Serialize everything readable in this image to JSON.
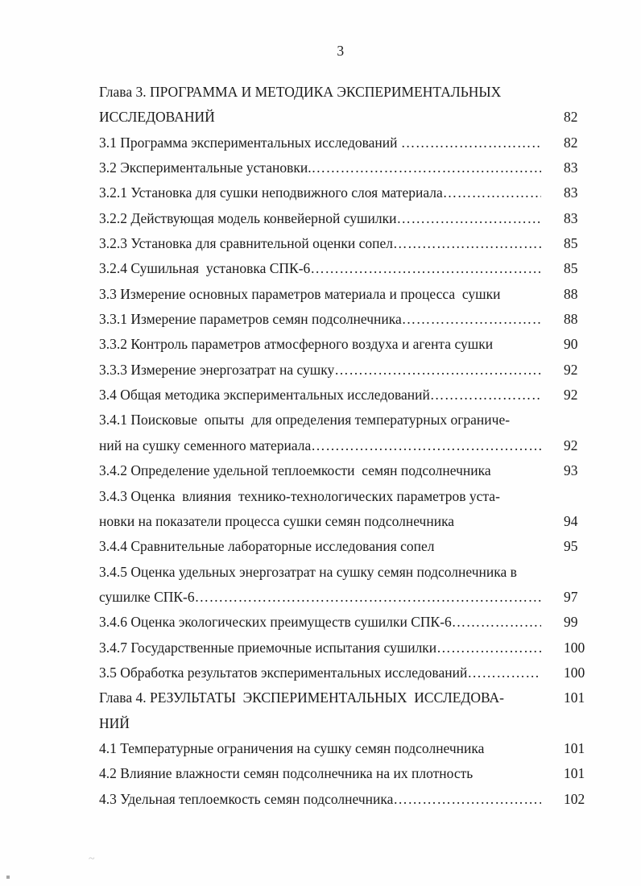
{
  "document": {
    "page_number": "3",
    "leader_dots": "………………………………………………………………………………………………",
    "entries": [
      {
        "text": "Глава 3. ПРОГРАММА И МЕТОДИКА ЭКСПЕРИМЕНТАЛЬНЫХ",
        "leader": false,
        "page": ""
      },
      {
        "text": "ИССЛЕДОВАНИЙ",
        "leader": false,
        "page": "82"
      },
      {
        "text": "3.1 Программа экспериментальных исследований ",
        "leader": true,
        "page": "82"
      },
      {
        "text": "3.2 Экспериментальные установки.",
        "leader": true,
        "page": "83"
      },
      {
        "text": "3.2.1 Установка для сушки неподвижного слоя материала",
        "leader": true,
        "page": "83"
      },
      {
        "text": "3.2.2 Действующая модель конвейерной сушилки",
        "leader": true,
        "page": "83"
      },
      {
        "text": "3.2.3 Установка для сравнительной оценки сопел",
        "leader": true,
        "page": "85"
      },
      {
        "text": "3.2.4 Сушильная  установка СПК-6",
        "leader": true,
        "page": "85"
      },
      {
        "text": "3.3 Измерение основных параметров материала и процесса  сушки",
        "leader": false,
        "page": "88"
      },
      {
        "text": "3.3.1 Измерение параметров семян подсолнечника",
        "leader": true,
        "page": "88"
      },
      {
        "text": "3.3.2 Контроль параметров атмосферного воздуха и агента сушки",
        "leader": false,
        "page": "90"
      },
      {
        "text": "3.3.3 Измерение энергозатрат на сушку",
        "leader": true,
        "page": "92"
      },
      {
        "text": "3.4 Общая методика экспериментальных исследований",
        "leader": true,
        "page": "92"
      },
      {
        "text": "3.4.1 Поисковые  опыты  для определения температурных ограниче-",
        "leader": false,
        "page": ""
      },
      {
        "text": "ний на сушку семенного материала",
        "leader": true,
        "page": "92"
      },
      {
        "text": "3.4.2 Определение удельной теплоемкости  семян подсолнечника",
        "leader": false,
        "page": "93"
      },
      {
        "text": "3.4.3 Оценка  влияния  технико-технологических параметров уста-",
        "leader": false,
        "page": ""
      },
      {
        "text": "новки на показатели процесса сушки семян подсолнечника",
        "leader": false,
        "page": "94"
      },
      {
        "text": "3.4.4 Сравнительные лабораторные исследования сопел",
        "leader": false,
        "page": "95"
      },
      {
        "text": "3.4.5 Оценка удельных энергозатрат на сушку семян подсолнечника в",
        "leader": false,
        "page": ""
      },
      {
        "text": "сушилке СПК-6",
        "leader": true,
        "page": "97"
      },
      {
        "text": "3.4.6 Оценка экологических преимуществ сушилки СПК-6",
        "leader": true,
        "page": "99"
      },
      {
        "text": "3.4.7 Государственные приемочные испытания сушилки",
        "leader": true,
        "page": "100"
      },
      {
        "text": "3.5 Обработка результатов экспериментальных исследований",
        "leader": true,
        "page": "100"
      },
      {
        "text": "Глава 4. РЕЗУЛЬТАТЫ  ЭКСПЕРИМЕНТАЛЬНЫХ  ИССЛЕДОВА-",
        "leader": false,
        "page": "101"
      },
      {
        "text": "НИЙ",
        "leader": false,
        "page": ""
      },
      {
        "text": "4.1 Температурные ограничения на сушку семян подсолнечника",
        "leader": false,
        "page": "101"
      },
      {
        "text": "4.2 Влияние влажности семян подсолнечника на их плотность",
        "leader": false,
        "page": "101"
      },
      {
        "text": "4.3 Удельная теплоемкость семян подсолнечника",
        "leader": true,
        "page": "102"
      }
    ],
    "artifacts": {
      "stray_apostrophe": "’",
      "stray_tilde": "~"
    }
  }
}
